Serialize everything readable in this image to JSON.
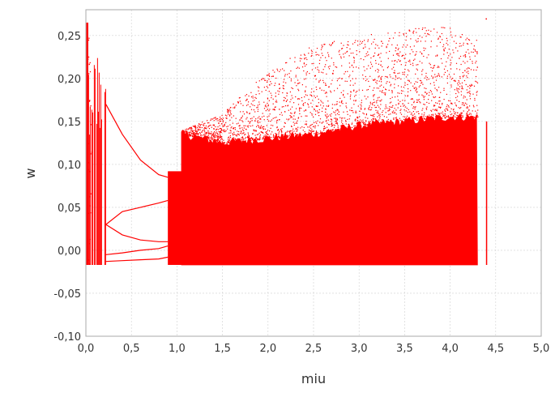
{
  "chart_data": {
    "type": "scatter",
    "title": "",
    "xlabel": "miu",
    "ylabel": "w",
    "xlim": [
      0.0,
      5.0
    ],
    "ylim": [
      -0.1,
      0.28
    ],
    "x_ticks": [
      0.0,
      0.5,
      1.0,
      1.5,
      2.0,
      2.5,
      3.0,
      3.5,
      4.0,
      4.5,
      5.0
    ],
    "x_tick_labels": [
      "0,0",
      "0,5",
      "1,0",
      "1,5",
      "2,0",
      "2,5",
      "3,0",
      "3,5",
      "4,0",
      "4,5",
      "5,0"
    ],
    "y_ticks": [
      -0.1,
      -0.05,
      0.0,
      0.05,
      0.1,
      0.15,
      0.2,
      0.25
    ],
    "y_tick_labels": [
      "-0,10",
      "-0,05",
      "0,00",
      "0,05",
      "0,10",
      "0,15",
      "0,20",
      "0,25"
    ],
    "grid": true,
    "legend": "none",
    "series_color": "#ff0000",
    "grid_color": "#d0d0d0",
    "regions": [
      {
        "label": "edge-envelope",
        "x": [
          0.0,
          0.03,
          0.06
        ],
        "y_upper": [
          0.265,
          0.26,
          0.25
        ],
        "y_lower": -0.017
      },
      {
        "label": "left-chaotic-band",
        "x": [
          0.03,
          0.22
        ],
        "y_lower": -0.017,
        "y_upper": 0.235
      },
      {
        "label": "period-branches",
        "x": [
          0.22,
          0.9
        ],
        "branches": [
          {
            "x": [
              0.22,
              0.4,
              0.6,
              0.8,
              0.9
            ],
            "y": [
              0.17,
              0.135,
              0.105,
              0.088,
              0.085
            ]
          },
          {
            "x": [
              0.22,
              0.4,
              0.6,
              0.8,
              0.9
            ],
            "y": [
              0.03,
              0.045,
              0.05,
              0.055,
              0.058
            ]
          },
          {
            "x": [
              0.22,
              0.4,
              0.6,
              0.8,
              0.9
            ],
            "y": [
              0.03,
              0.018,
              0.012,
              0.01,
              0.01
            ]
          },
          {
            "x": [
              0.22,
              0.4,
              0.6,
              0.8,
              0.9
            ],
            "y": [
              -0.005,
              -0.003,
              0.0,
              0.002,
              0.005
            ]
          },
          {
            "x": [
              0.22,
              0.4,
              0.6,
              0.8,
              0.9
            ],
            "y": [
              -0.013,
              -0.012,
              -0.011,
              -0.01,
              -0.008
            ]
          }
        ]
      },
      {
        "label": "transition-block",
        "x": [
          0.9,
          1.05
        ],
        "y_lower": -0.017,
        "y_upper": 0.092
      },
      {
        "label": "main-chaotic-region",
        "x": [
          1.05,
          1.5,
          2.0,
          2.5,
          3.0,
          3.5,
          4.0,
          4.3
        ],
        "y_lower": -0.017,
        "y_dense_upper": [
          0.135,
          0.125,
          0.13,
          0.135,
          0.145,
          0.15,
          0.155,
          0.155
        ],
        "y_sparse_upper": [
          0.14,
          0.16,
          0.21,
          0.24,
          0.25,
          0.26,
          0.26,
          0.25
        ]
      },
      {
        "label": "isolated-line",
        "x": [
          4.4,
          4.4
        ],
        "y": [
          -0.017,
          0.15
        ]
      }
    ]
  }
}
